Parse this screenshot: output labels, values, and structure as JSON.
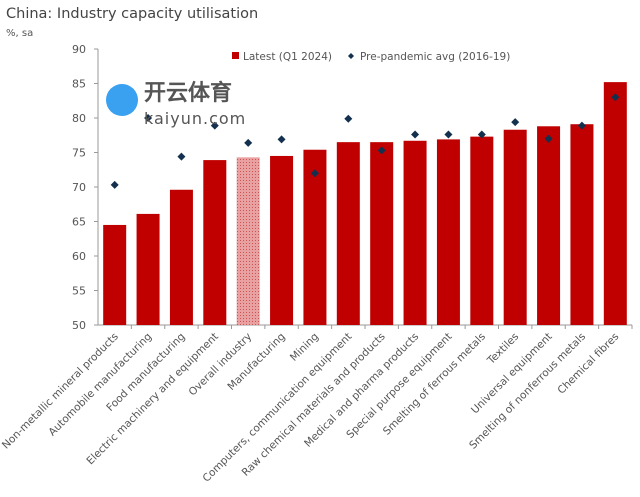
{
  "chart_data": {
    "type": "bar",
    "title": "China: Industry capacity utilisation",
    "ylabel": "%, sa",
    "ylim": [
      50,
      90
    ],
    "yticks": [
      50,
      55,
      60,
      65,
      70,
      75,
      80,
      85,
      90
    ],
    "grid": false,
    "legend_placement": "top-center",
    "categories": [
      "Non-metallic mineral products",
      "Automobile manufacturing",
      "Food manufacturing",
      "Electric machinery and equipment",
      "Overall industry",
      "Manufacturing",
      "Mining",
      "Computers, communication equipment",
      "Raw chemical materials and products",
      "Medical and pharma products",
      "Special purpose equipment",
      "Smelting of ferrous metals",
      "Textiles",
      "Universal equipment",
      "Smelting of nonferrous metals",
      "Chemical fibres"
    ],
    "highlighted_category": "Overall industry",
    "series": [
      {
        "name": "Latest (Q1 2024)",
        "type": "bar",
        "color": "#c00000",
        "values": [
          64.5,
          66.1,
          69.6,
          73.9,
          74.3,
          74.5,
          75.4,
          76.5,
          76.5,
          76.7,
          76.9,
          77.3,
          78.3,
          78.8,
          79.1,
          85.2
        ]
      },
      {
        "name": "Pre-pandemic avg (2016-19)",
        "type": "scatter",
        "marker": "diamond",
        "color": "#13304f",
        "values": [
          70.3,
          80.0,
          74.4,
          78.9,
          76.4,
          76.9,
          72.0,
          79.9,
          75.3,
          77.6,
          77.6,
          77.6,
          79.4,
          77.0,
          78.9,
          83.0
        ]
      }
    ],
    "highlight_color": "#e8a0a0"
  },
  "watermark": {
    "brand": "开云体育",
    "url": "kaiyun.com"
  }
}
